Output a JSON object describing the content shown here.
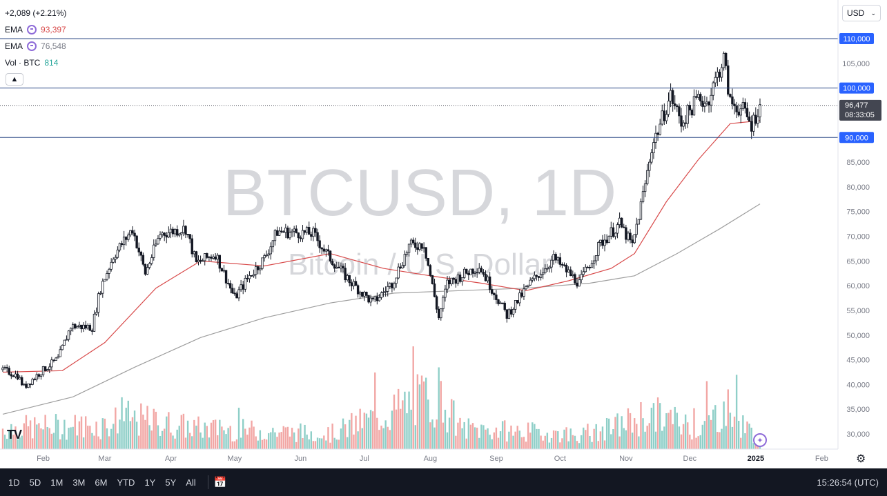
{
  "header": {
    "change": "+2,089 (+2.21%)",
    "ema1_label": "EMA",
    "ema1_value": "93,397",
    "ema2_label": "EMA",
    "ema2_value": "76,548",
    "vol_label": "Vol · BTC",
    "vol_value": "814",
    "collapse_icon": "chevron-up-icon",
    "currency": "USD"
  },
  "watermark": {
    "symbol": "BTCUSD, 1D",
    "name": "Bitcoin / U.S. Dollar"
  },
  "colors": {
    "up": "#26a69a",
    "down": "#ef5350",
    "candle": "#131722",
    "ema_fast": "#d84a4a",
    "ema_slow": "#9e9e9e",
    "level": "#2d4a86",
    "tag_bg": "#2962ff",
    "price_tag_bg": "#434651",
    "toolbar_bg": "#131722",
    "accent": "#8e6bd8"
  },
  "chart_data": {
    "type": "candlestick",
    "title": "BTCUSD, 1D",
    "subtitle": "Bitcoin / U.S. Dollar",
    "ylim": [
      27000,
      113000
    ],
    "y_ticks": [
      30000,
      35000,
      40000,
      45000,
      50000,
      55000,
      60000,
      65000,
      70000,
      75000,
      80000,
      85000,
      90000,
      95000,
      100000,
      105000,
      110000
    ],
    "y_tick_labels": [
      "30,000",
      "35,000",
      "40,000",
      "45,000",
      "50,000",
      "55,000",
      "60,000",
      "65,000",
      "70,000",
      "75,000",
      "80,000",
      "85,000",
      "90,000",
      "95,000",
      "100,000",
      "105,000",
      "110,000"
    ],
    "x_labels": [
      "Feb",
      "Mar",
      "Apr",
      "May",
      "Jun",
      "Jul",
      "Aug",
      "Sep",
      "Oct",
      "Nov",
      "Dec",
      "2025",
      "Feb"
    ],
    "x_label_dates": [
      "2024-02-01",
      "2024-03-01",
      "2024-04-01",
      "2024-05-01",
      "2024-06-01",
      "2024-07-01",
      "2024-08-01",
      "2024-09-01",
      "2024-10-01",
      "2024-11-01",
      "2024-12-01",
      "2025-01-01",
      "2025-02-01"
    ],
    "date_range": [
      "2024-01-13",
      "2025-01-03"
    ],
    "horizontal_levels": [
      {
        "value": 110000,
        "label": "110,000"
      },
      {
        "value": 100000,
        "label": "100,000"
      },
      {
        "value": 90000,
        "label": "90,000"
      }
    ],
    "last_price": {
      "value": 96477,
      "label": "96,477",
      "countdown": "08:33:05"
    },
    "close_path": [
      [
        "2024-01-13",
        43000
      ],
      [
        "2024-01-20",
        41800
      ],
      [
        "2024-01-23",
        39500
      ],
      [
        "2024-01-31",
        42600
      ],
      [
        "2024-02-08",
        45200
      ],
      [
        "2024-02-14",
        51800
      ],
      [
        "2024-02-24",
        51600
      ],
      [
        "2024-02-28",
        59500
      ],
      [
        "2024-03-05",
        66000
      ],
      [
        "2024-03-14",
        71500
      ],
      [
        "2024-03-20",
        62500
      ],
      [
        "2024-03-27",
        70500
      ],
      [
        "2024-04-08",
        71600
      ],
      [
        "2024-04-13",
        64500
      ],
      [
        "2024-04-22",
        66500
      ],
      [
        "2024-05-01",
        57500
      ],
      [
        "2024-05-08",
        62000
      ],
      [
        "2024-05-15",
        65500
      ],
      [
        "2024-05-21",
        71000
      ],
      [
        "2024-06-07",
        70500
      ],
      [
        "2024-06-14",
        66000
      ],
      [
        "2024-06-24",
        61000
      ],
      [
        "2024-07-05",
        56500
      ],
      [
        "2024-07-14",
        60500
      ],
      [
        "2024-07-22",
        68000
      ],
      [
        "2024-07-29",
        68500
      ],
      [
        "2024-08-05",
        53500
      ],
      [
        "2024-08-09",
        60500
      ],
      [
        "2024-08-24",
        64000
      ],
      [
        "2024-09-06",
        54000
      ],
      [
        "2024-09-17",
        60500
      ],
      [
        "2024-09-28",
        65500
      ],
      [
        "2024-10-10",
        60500
      ],
      [
        "2024-10-20",
        68500
      ],
      [
        "2024-10-29",
        72500
      ],
      [
        "2024-11-04",
        68000
      ],
      [
        "2024-11-10",
        80500
      ],
      [
        "2024-11-13",
        88000
      ],
      [
        "2024-11-22",
        98500
      ],
      [
        "2024-11-27",
        93000
      ],
      [
        "2024-12-05",
        98000
      ],
      [
        "2024-12-09",
        97000
      ],
      [
        "2024-12-17",
        106000
      ],
      [
        "2024-12-20",
        97000
      ],
      [
        "2024-12-26",
        95500
      ],
      [
        "2024-12-30",
        92500
      ],
      [
        "2025-01-03",
        96477
      ]
    ],
    "ema_fast_path": [
      [
        "2024-01-13",
        42500
      ],
      [
        "2024-02-10",
        42800
      ],
      [
        "2024-03-01",
        48500
      ],
      [
        "2024-03-25",
        59500
      ],
      [
        "2024-04-15",
        65000
      ],
      [
        "2024-05-15",
        64000
      ],
      [
        "2024-06-15",
        66500
      ],
      [
        "2024-07-10",
        63500
      ],
      [
        "2024-08-01",
        62000
      ],
      [
        "2024-08-25",
        60500
      ],
      [
        "2024-09-15",
        59000
      ],
      [
        "2024-10-05",
        61000
      ],
      [
        "2024-10-25",
        63500
      ],
      [
        "2024-11-05",
        66500
      ],
      [
        "2024-11-20",
        77000
      ],
      [
        "2024-12-05",
        85500
      ],
      [
        "2024-12-20",
        92800
      ],
      [
        "2025-01-03",
        93397
      ]
    ],
    "ema_slow_path": [
      [
        "2024-01-13",
        34000
      ],
      [
        "2024-02-15",
        37500
      ],
      [
        "2024-03-15",
        43500
      ],
      [
        "2024-04-15",
        49500
      ],
      [
        "2024-05-15",
        53500
      ],
      [
        "2024-06-15",
        56500
      ],
      [
        "2024-07-15",
        58500
      ],
      [
        "2024-08-15",
        59000
      ],
      [
        "2024-09-15",
        59500
      ],
      [
        "2024-10-15",
        60500
      ],
      [
        "2024-11-05",
        62000
      ],
      [
        "2024-11-25",
        66500
      ],
      [
        "2024-12-15",
        71500
      ],
      [
        "2025-01-03",
        76548
      ]
    ],
    "volume_level_path": [
      [
        "2024-01-13",
        0.3
      ],
      [
        "2024-03-01",
        0.35
      ],
      [
        "2024-03-10",
        0.45
      ],
      [
        "2024-04-15",
        0.3
      ],
      [
        "2024-06-15",
        0.22
      ],
      [
        "2024-08-05",
        0.8
      ],
      [
        "2024-08-15",
        0.3
      ],
      [
        "2024-10-15",
        0.2
      ],
      [
        "2024-11-12",
        0.5
      ],
      [
        "2024-11-20",
        0.45
      ],
      [
        "2024-12-05",
        0.3
      ],
      [
        "2024-12-18",
        0.6
      ],
      [
        "2025-01-03",
        0.12
      ]
    ]
  },
  "toolbar": {
    "ranges": [
      "1D",
      "5D",
      "1M",
      "3M",
      "6M",
      "YTD",
      "1Y",
      "5Y",
      "All"
    ],
    "calendar_icon": "calendar-icon",
    "time": "15:26:54 (UTC)"
  }
}
